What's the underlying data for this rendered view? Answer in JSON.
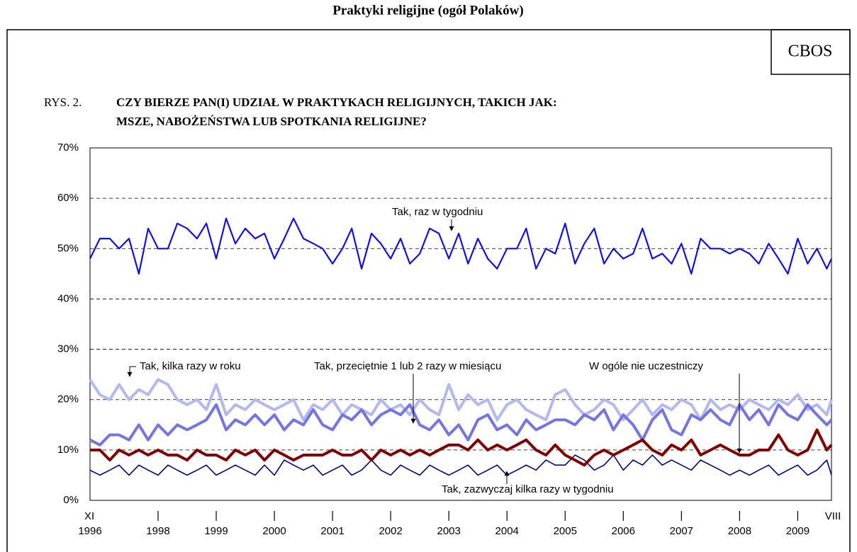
{
  "header": "Praktyki religijne (ogół Polaków)",
  "badge": "CBOS",
  "chart_data": {
    "type": "line",
    "figure_label": "RYS. 2.",
    "title": [
      "CZY BIERZE PAN(I) UDZIAŁ W PRAKTYKACH RELIGIJNYCH, TAKICH JAK:",
      "MSZE, NABOŻEŃSTWA LUB SPOTKANIA RELIGIJNE?"
    ],
    "x": [
      1996.83,
      1997.0,
      1997.17,
      1997.33,
      1997.5,
      1997.67,
      1997.83,
      1998.0,
      1998.17,
      1998.33,
      1998.5,
      1998.67,
      1998.83,
      1999.0,
      1999.17,
      1999.33,
      1999.5,
      1999.67,
      1999.83,
      2000.0,
      2000.17,
      2000.33,
      2000.5,
      2000.67,
      2000.83,
      2001.0,
      2001.17,
      2001.33,
      2001.5,
      2001.67,
      2001.83,
      2002.0,
      2002.17,
      2002.33,
      2002.5,
      2002.67,
      2002.83,
      2003.0,
      2003.17,
      2003.33,
      2003.5,
      2003.67,
      2003.83,
      2004.0,
      2004.17,
      2004.33,
      2004.5,
      2004.67,
      2004.83,
      2005.0,
      2005.17,
      2005.33,
      2005.5,
      2005.67,
      2005.83,
      2006.0,
      2006.17,
      2006.33,
      2006.5,
      2006.67,
      2006.83,
      2007.0,
      2007.17,
      2007.33,
      2007.5,
      2007.67,
      2007.83,
      2008.0,
      2008.17,
      2008.33,
      2008.5,
      2008.67,
      2008.83,
      2009.0,
      2009.17,
      2009.33,
      2009.5,
      2009.58
    ],
    "series": [
      {
        "name": "Tak, raz w  tygodniu",
        "color": "#1010e0",
        "width": 2.2,
        "values": [
          48,
          52,
          52,
          50,
          52,
          45,
          54,
          50,
          50,
          55,
          54,
          52,
          55,
          48,
          56,
          51,
          54,
          52,
          53,
          48,
          52,
          56,
          52,
          51,
          50,
          47,
          50,
          54,
          46,
          53,
          51,
          48,
          52,
          47,
          49,
          54,
          53,
          48,
          53,
          47,
          52,
          48,
          46,
          50,
          50,
          54,
          46,
          50,
          49,
          55,
          47,
          51,
          54,
          47,
          50,
          48,
          49,
          54,
          48,
          49,
          47,
          51,
          45,
          52,
          50,
          50,
          49,
          50,
          49,
          47,
          51,
          48,
          45,
          52,
          47,
          50,
          46,
          48
        ]
      },
      {
        "name": "Tak, kilka razy w roku",
        "color": "#b4b8f0",
        "width": 4,
        "values": [
          24,
          21,
          20,
          23,
          20,
          22,
          21,
          24,
          23,
          20,
          19,
          20,
          18,
          23,
          17,
          19,
          18,
          20,
          19,
          18,
          19,
          20,
          16,
          19,
          18,
          20,
          17,
          19,
          18,
          17,
          20,
          18,
          19,
          17,
          20,
          18,
          17,
          23,
          18,
          21,
          19,
          20,
          16,
          19,
          20,
          18,
          17,
          16,
          21,
          22,
          19,
          17,
          18,
          20,
          19,
          16,
          18,
          20,
          17,
          19,
          18,
          20,
          19,
          16,
          20,
          18,
          19,
          18,
          20,
          19,
          18,
          20,
          19,
          21,
          18,
          19,
          17,
          20
        ]
      },
      {
        "name": "Tak, przeciętnie 1 lub 2 razy w  miesiącu",
        "color": "#7474e4",
        "width": 4,
        "values": [
          12,
          11,
          13,
          13,
          12,
          15,
          12,
          15,
          13,
          15,
          14,
          15,
          16,
          19,
          14,
          16,
          15,
          17,
          15,
          17,
          14,
          16,
          15,
          18,
          15,
          14,
          17,
          16,
          18,
          15,
          17,
          18,
          17,
          19,
          15,
          14,
          16,
          13,
          15,
          12,
          16,
          17,
          14,
          15,
          13,
          16,
          14,
          15,
          16,
          16,
          15,
          17,
          16,
          18,
          14,
          17,
          15,
          12,
          16,
          18,
          14,
          13,
          17,
          16,
          18,
          16,
          15,
          19,
          16,
          18,
          15,
          19,
          17,
          16,
          19,
          17,
          15,
          16
        ]
      },
      {
        "name": "W ogóle nie uczestniczy",
        "color": "#800000",
        "width": 4,
        "values": [
          10,
          10,
          8,
          10,
          9,
          10,
          9,
          10,
          9,
          9,
          8,
          10,
          9,
          9,
          8,
          10,
          9,
          10,
          8,
          10,
          9,
          8,
          9,
          9,
          9,
          10,
          9,
          9,
          10,
          8,
          10,
          9,
          10,
          9,
          10,
          9,
          10,
          11,
          11,
          10,
          12,
          10,
          11,
          10,
          11,
          12,
          10,
          9,
          11,
          9,
          8,
          7,
          9,
          10,
          9,
          10,
          11,
          12,
          10,
          9,
          11,
          10,
          12,
          9,
          10,
          11,
          10,
          9,
          9,
          10,
          10,
          13,
          10,
          9,
          10,
          14,
          10,
          11
        ]
      },
      {
        "name": "Tak, zazwyczaj kilka razy w tygodniu",
        "color": "#000080",
        "width": 1.6,
        "values": [
          6,
          5,
          6,
          7,
          5,
          7,
          6,
          5,
          7,
          6,
          5,
          6,
          7,
          5,
          6,
          7,
          6,
          5,
          7,
          5,
          8,
          7,
          6,
          7,
          5,
          6,
          7,
          5,
          6,
          8,
          6,
          5,
          7,
          6,
          5,
          7,
          6,
          5,
          6,
          7,
          5,
          6,
          7,
          5,
          6,
          7,
          6,
          8,
          7,
          7,
          9,
          8,
          6,
          7,
          9,
          6,
          8,
          7,
          9,
          7,
          8,
          7,
          6,
          8,
          7,
          6,
          5,
          6,
          5,
          6,
          7,
          5,
          6,
          7,
          5,
          6,
          8,
          5
        ]
      }
    ],
    "xlim": [
      1996.83,
      2009.58
    ],
    "xticks": [
      {
        "value": 1996.83,
        "label": "1996"
      },
      1998,
      1999,
      2000,
      2001,
      2002,
      2003,
      2004,
      2005,
      2006,
      2007,
      2008,
      2009
    ],
    "x_start_label": "XI",
    "x_end_label": "VIII",
    "ylim": [
      0,
      70
    ],
    "yticks": [
      {
        "value": 0,
        "label": "0%"
      },
      {
        "value": 10,
        "label": "10%"
      },
      {
        "value": 20,
        "label": "20%"
      },
      {
        "value": 30,
        "label": "30%"
      },
      {
        "value": 40,
        "label": "40%"
      },
      {
        "value": 50,
        "label": "50%"
      },
      {
        "value": 60,
        "label": "60%"
      },
      {
        "value": 70,
        "label": "70%"
      }
    ],
    "grid": true
  }
}
